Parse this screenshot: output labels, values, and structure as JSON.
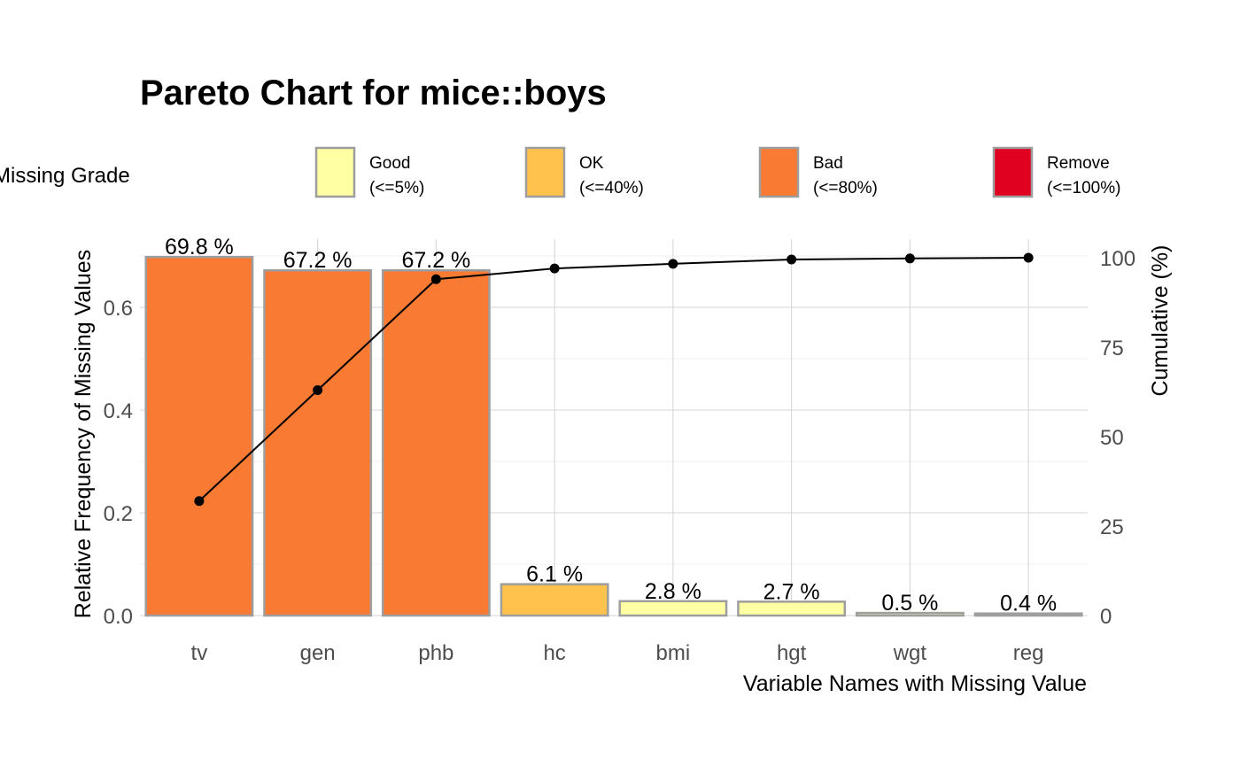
{
  "chart_data": {
    "type": "bar",
    "title": "Pareto Chart for mice::boys",
    "xlabel": "Variable Names with Missing Value",
    "ylabel": "Relative Frequency of Missing Values",
    "y2label": "Cumulative (%)",
    "categories": [
      "tv",
      "gen",
      "phb",
      "hc",
      "bmi",
      "hgt",
      "wgt",
      "reg"
    ],
    "values": [
      0.698,
      0.672,
      0.672,
      0.061,
      0.028,
      0.027,
      0.005,
      0.004
    ],
    "bar_labels": [
      "69.8 %",
      "67.2 %",
      "67.2 %",
      "6.1 %",
      "2.8 %",
      "2.7 %",
      "0.5 %",
      "0.4 %"
    ],
    "bar_grades": [
      "Bad",
      "Bad",
      "Bad",
      "OK",
      "Good",
      "Good",
      "Good",
      "Good"
    ],
    "cumulative": [
      32.0,
      63.0,
      94.0,
      97.0,
      98.3,
      99.5,
      99.8,
      100.0
    ],
    "ylim": [
      0,
      0.7
    ],
    "yticks": [
      0.0,
      0.2,
      0.4,
      0.6
    ],
    "ytick_labels": [
      "0.0",
      "0.2",
      "0.4",
      "0.6"
    ],
    "y2lim": [
      0,
      100
    ],
    "y2ticks": [
      0,
      25,
      50,
      75,
      100
    ],
    "y2tick_labels": [
      "0",
      "25",
      "50",
      "75",
      "100"
    ],
    "grid": true,
    "legend": {
      "title": "Missing Grade",
      "position": "top",
      "items": [
        {
          "name": "Good",
          "range": "(<=5%)",
          "color": "#FFFFA4"
        },
        {
          "name": "OK",
          "range": "(<=40%)",
          "color": "#FEC24D"
        },
        {
          "name": "Bad",
          "range": "(<=80%)",
          "color": "#F97A32"
        },
        {
          "name": "Remove",
          "range": "(<=100%)",
          "color": "#E00020"
        }
      ]
    },
    "colors": {
      "Good": "#FFFFA4",
      "OK": "#FEC24D",
      "Bad": "#F97A32",
      "Remove": "#E00020",
      "bar_outline": "#9e9e9e",
      "line": "#000000"
    }
  }
}
